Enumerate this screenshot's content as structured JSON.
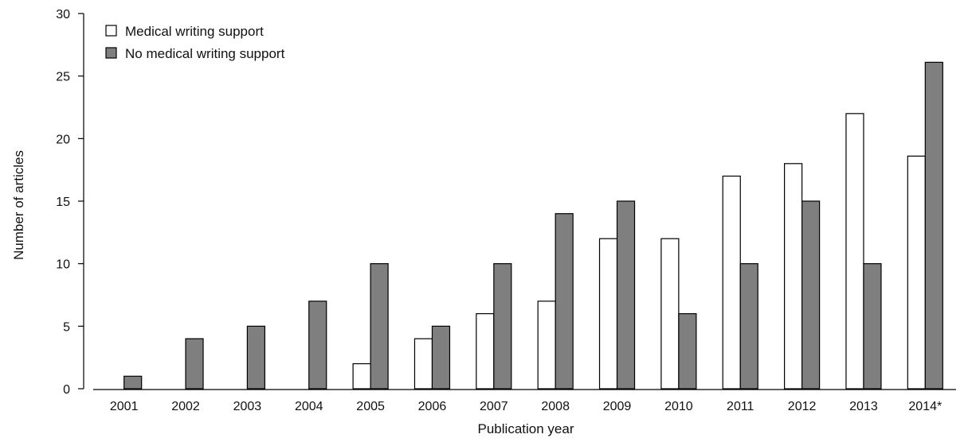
{
  "chart_data": {
    "type": "bar",
    "xlabel": "Publication year",
    "ylabel": "Number of articles",
    "categories": [
      "2001",
      "2002",
      "2003",
      "2004",
      "2005",
      "2006",
      "2007",
      "2008",
      "2009",
      "2010",
      "2011",
      "2012",
      "2013",
      "2014*"
    ],
    "series": [
      {
        "name": "Medical writing support",
        "color": "#ffffff",
        "values": [
          0,
          0,
          0,
          0,
          2,
          4,
          6,
          7,
          12,
          12,
          17,
          18,
          22,
          18.6
        ]
      },
      {
        "name": "No medical writing support",
        "color": "#7f7f7f",
        "values": [
          1,
          4,
          5,
          7,
          10,
          5,
          10,
          14,
          15,
          6,
          10,
          15,
          10,
          26.1
        ]
      }
    ],
    "ylim": [
      0,
      30
    ],
    "yticks": [
      0,
      5,
      10,
      15,
      20,
      25,
      30
    ],
    "grid": false,
    "legend_position": "top-left"
  }
}
